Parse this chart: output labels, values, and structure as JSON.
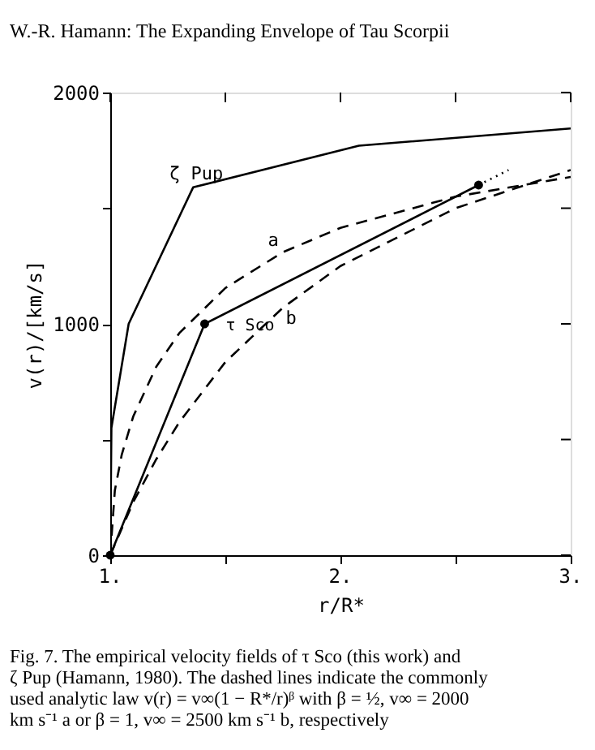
{
  "chart_data": {
    "type": "line",
    "title": "W.-R. Hamann: The Expanding Envelope of Tau Scorpii",
    "xlabel": "r/R*",
    "ylabel": "v(r)/[km/s]",
    "xlim": [
      1,
      3
    ],
    "ylim": [
      0,
      2000
    ],
    "xticks": [
      {
        "value": 1,
        "label": "1."
      },
      {
        "value": 1.5,
        "label": null
      },
      {
        "value": 2,
        "label": "2."
      },
      {
        "value": 2.5,
        "label": null
      },
      {
        "value": 3,
        "label": "3."
      }
    ],
    "yticks": [
      0,
      {
        "value": 500,
        "label": null
      },
      1000,
      {
        "value": 1500,
        "label": null
      },
      2000
    ],
    "grid": false,
    "series": [
      {
        "name": "ζ Pup",
        "color": "#000000",
        "line_style": "solid",
        "marker": "none",
        "x": [
          1.0,
          1.005,
          1.08,
          1.36,
          2.08,
          3.0
        ],
        "values": [
          0,
          550,
          1000,
          1590,
          1770,
          1845
        ]
      },
      {
        "name": "τ Sco",
        "color": "#000000",
        "line_style": "solid",
        "marker": "circle",
        "x": [
          1.0,
          1.41,
          2.6
        ],
        "values": [
          0,
          1000,
          1600
        ]
      },
      {
        "color": "#000000",
        "line_style": "dotted",
        "marker": "none",
        "x": [
          2.6,
          2.73
        ],
        "values": [
          1600,
          1665
        ]
      },
      {
        "name": "a",
        "color": "#000000",
        "line_style": "dashed",
        "marker": "none",
        "x": [
          1.0,
          1.02,
          1.05,
          1.1,
          1.2,
          1.3,
          1.5,
          1.75,
          2.0,
          2.5,
          3.0
        ],
        "values": [
          0,
          280,
          435,
          600,
          815,
          960,
          1155,
          1310,
          1415,
          1550,
          1635
        ]
      },
      {
        "name": "b",
        "color": "#000000",
        "line_style": "dashed",
        "marker": "none",
        "x": [
          1.0,
          1.1,
          1.2,
          1.3,
          1.5,
          1.75,
          2.0,
          2.5,
          3.0
        ],
        "values": [
          0,
          230,
          415,
          575,
          835,
          1070,
          1250,
          1500,
          1665
        ]
      }
    ],
    "annotations": [
      "Fig. 7. The empirical velocity fields of τ Sco (this work) and ζ Pup (Hamann, 1980). The dashed lines indicate the commonly used analytic law v(r) = v∞(1 − R*/r)ᵝ with β = ½, v∞ = 2000 km s⁻¹ a or β = 1, v∞ = 2500 km s⁻¹ b, respectively"
    ]
  }
}
